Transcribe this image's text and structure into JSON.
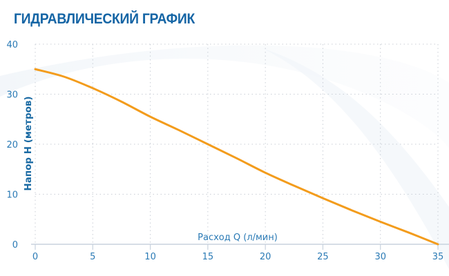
{
  "header": {
    "title": "ГИДРАВЛИЧЕСКИЙ ГРАФИК"
  },
  "colors": {
    "title": "#1565a5",
    "curve": "#f39c1c",
    "ticks": "#2a7ab5",
    "grid": "#c9ced6",
    "axis": "#c8d2de"
  },
  "chart_data": {
    "type": "line",
    "title": "ГИДРАВЛИЧЕСКИЙ ГРАФИК",
    "xlabel": "Расход Q (л/мин)",
    "ylabel": "Напор H (метров)",
    "xlim": [
      0,
      35
    ],
    "ylim": [
      0,
      40
    ],
    "xticks": [
      "0",
      "5",
      "10",
      "15",
      "20",
      "25",
      "30",
      "35"
    ],
    "yticks": [
      "0",
      "10",
      "20",
      "30",
      "40"
    ],
    "grid": true,
    "legend": null,
    "series": [
      {
        "name": "Напор",
        "x": [
          0,
          2.5,
          5,
          7.5,
          10,
          12.5,
          15,
          17.5,
          20,
          22.5,
          25,
          27.5,
          30,
          32.5,
          35
        ],
        "values": [
          35,
          33.5,
          31.2,
          28.5,
          25.5,
          22.8,
          20,
          17.2,
          14.3,
          11.7,
          9.2,
          6.8,
          4.5,
          2.3,
          0
        ]
      }
    ]
  }
}
